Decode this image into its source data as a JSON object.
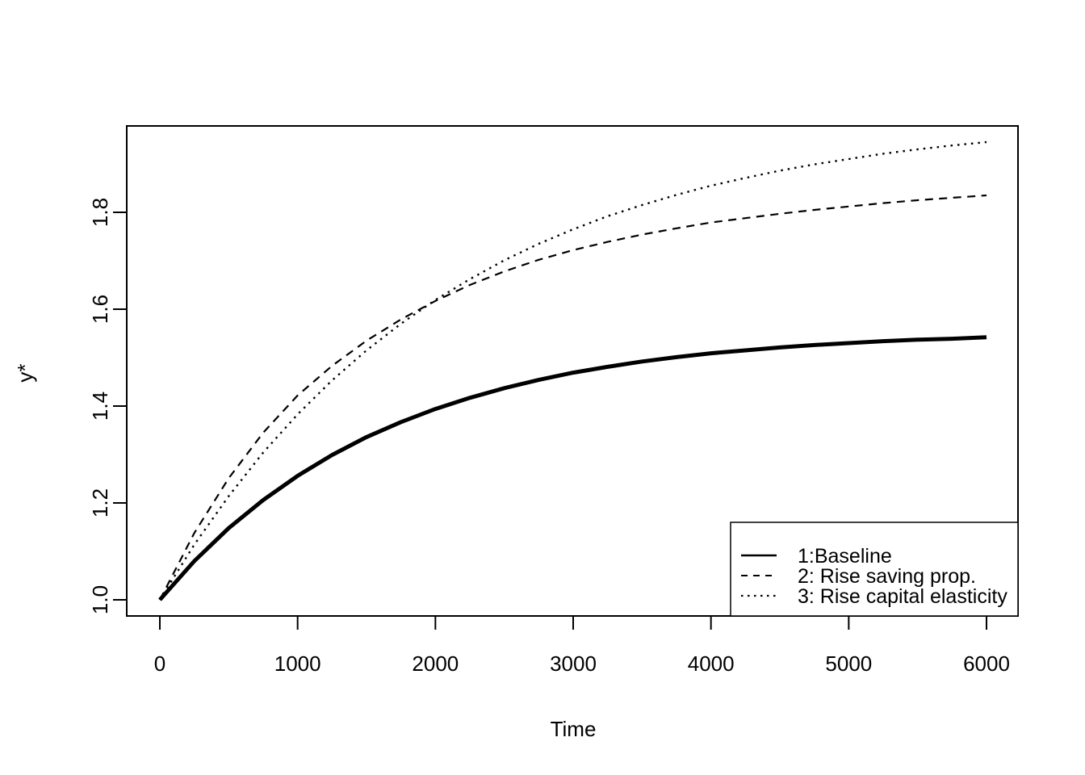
{
  "figure": {
    "background_color": "#ffffff",
    "foreground_color": "#000000"
  },
  "chart_data": {
    "type": "line",
    "title": "",
    "xlabel": "Time",
    "ylabel": "y*",
    "xlim": [
      0,
      6000
    ],
    "ylim": [
      1.0,
      1.95
    ],
    "grid": false,
    "frame_box": true,
    "x_ticks": [
      0,
      1000,
      2000,
      3000,
      4000,
      5000,
      6000
    ],
    "x_tick_labels": [
      "0",
      "1000",
      "2000",
      "3000",
      "4000",
      "5000",
      "6000"
    ],
    "y_ticks": [
      1.0,
      1.2,
      1.4,
      1.6,
      1.8
    ],
    "y_tick_labels": [
      "1.0",
      "1.2",
      "1.4",
      "1.6",
      "1.8"
    ],
    "x": [
      0,
      250,
      500,
      750,
      1000,
      1250,
      1500,
      1750,
      2000,
      2250,
      2500,
      2750,
      3000,
      3250,
      3500,
      3750,
      4000,
      4250,
      4500,
      4750,
      5000,
      5250,
      5500,
      5750,
      6000
    ],
    "series": [
      {
        "name": "1:Baseline",
        "style": "solid",
        "line_width": "thick",
        "values": [
          1.0,
          1.08,
          1.148,
          1.206,
          1.256,
          1.299,
          1.336,
          1.367,
          1.394,
          1.417,
          1.437,
          1.454,
          1.469,
          1.481,
          1.492,
          1.501,
          1.509,
          1.515,
          1.521,
          1.526,
          1.53,
          1.534,
          1.537,
          1.539,
          1.542
        ]
      },
      {
        "name": "2: Rise saving prop.",
        "style": "dashed",
        "line_width": "thin",
        "values": [
          1.0,
          1.138,
          1.251,
          1.345,
          1.422,
          1.483,
          1.535,
          1.579,
          1.617,
          1.65,
          1.678,
          1.702,
          1.722,
          1.739,
          1.754,
          1.767,
          1.779,
          1.788,
          1.797,
          1.805,
          1.812,
          1.819,
          1.825,
          1.83,
          1.835
        ]
      },
      {
        "name": "3: Rise capital elasticity",
        "style": "dotted",
        "line_width": "thin",
        "values": [
          1.0,
          1.114,
          1.214,
          1.304,
          1.383,
          1.453,
          1.515,
          1.57,
          1.619,
          1.662,
          1.701,
          1.735,
          1.765,
          1.792,
          1.815,
          1.836,
          1.855,
          1.871,
          1.886,
          1.899,
          1.91,
          1.921,
          1.93,
          1.938,
          1.945
        ]
      }
    ],
    "legend": {
      "position": "bottom-right",
      "boxed": true,
      "entries": [
        {
          "label": "1:Baseline",
          "style": "solid"
        },
        {
          "label": "2: Rise saving prop.",
          "style": "dashed"
        },
        {
          "label": "3: Rise capital elasticity",
          "style": "dotted"
        }
      ]
    }
  }
}
